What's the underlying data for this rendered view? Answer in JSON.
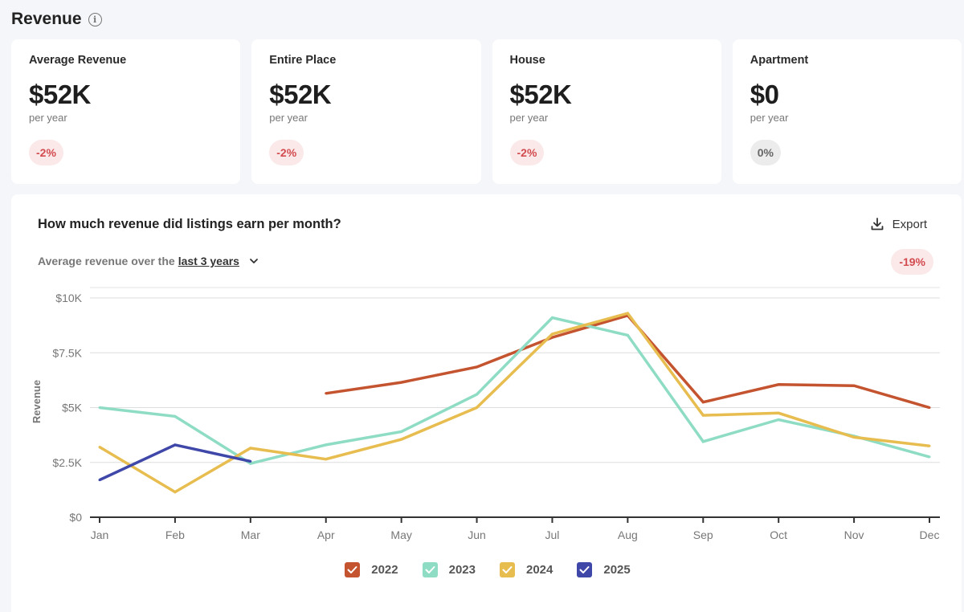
{
  "section": {
    "title": "Revenue",
    "info_icon": "info-icon"
  },
  "cards": [
    {
      "label": "Average Revenue",
      "value": "$52K",
      "sub": "per year",
      "change": "-2%",
      "trend": "negative"
    },
    {
      "label": "Entire Place",
      "value": "$52K",
      "sub": "per year",
      "change": "-2%",
      "trend": "negative"
    },
    {
      "label": "House",
      "value": "$52K",
      "sub": "per year",
      "change": "-2%",
      "trend": "negative"
    },
    {
      "label": "Apartment",
      "value": "$0",
      "sub": "per year",
      "change": "0%",
      "trend": "neutral"
    }
  ],
  "panel": {
    "title": "How much revenue did listings earn per month?",
    "export_label": "Export",
    "export_icon": "download-icon",
    "subtitle_prefix": "Average revenue over the",
    "subtitle_link": "last 3 years",
    "dropdown_icon": "chevron-down-icon",
    "trend_badge": "-19%"
  },
  "colors": {
    "2022": "#c4532f",
    "2023": "#8fdcc5",
    "2024": "#e8bd50",
    "2025": "#3f48a8",
    "negative_badge_bg": "#fbe9ea",
    "negative_badge_text": "#d24b4f"
  },
  "chart_data": {
    "type": "line",
    "title": "How much revenue did listings earn per month?",
    "xlabel": "",
    "ylabel": "Revenue",
    "ylim": [
      0,
      10000
    ],
    "yticks": [
      0,
      2500,
      5000,
      7500,
      10000
    ],
    "ytick_labels": [
      "$0",
      "$2.5K",
      "$5K",
      "$7.5K",
      "$10K"
    ],
    "grid": true,
    "legend_position": "bottom-center",
    "categories": [
      "Jan",
      "Feb",
      "Mar",
      "Apr",
      "May",
      "Jun",
      "Jul",
      "Aug",
      "Sep",
      "Oct",
      "Nov",
      "Dec"
    ],
    "series": [
      {
        "name": "2022",
        "values": [
          null,
          null,
          null,
          5650,
          6150,
          6850,
          8200,
          9200,
          5250,
          6050,
          6000,
          5000
        ]
      },
      {
        "name": "2023",
        "values": [
          5000,
          4600,
          2450,
          3300,
          3900,
          5600,
          9100,
          8300,
          3450,
          4450,
          3700,
          2750
        ]
      },
      {
        "name": "2024",
        "values": [
          3200,
          1150,
          3150,
          2650,
          3550,
          5000,
          8350,
          9300,
          4650,
          4750,
          3650,
          3250
        ]
      },
      {
        "name": "2025",
        "values": [
          1700,
          3300,
          2550,
          null,
          null,
          null,
          null,
          null,
          null,
          null,
          null,
          null
        ]
      }
    ]
  }
}
